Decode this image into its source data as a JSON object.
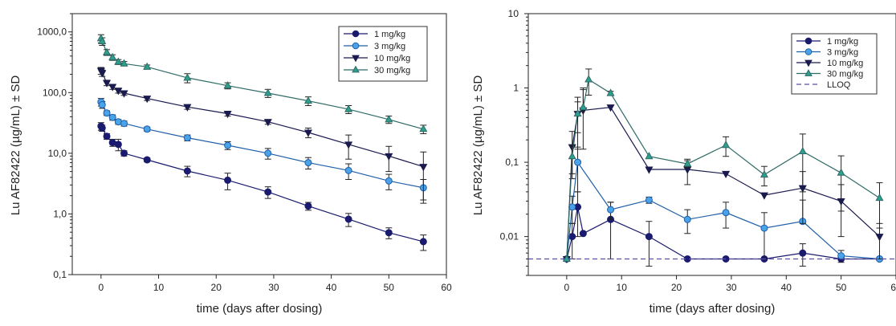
{
  "chart_data": [
    {
      "type": "scatter",
      "xlabel": "time (days after dosing)",
      "ylabel": "Lu AF82422 (µg/mL) ± SD",
      "yscale": "log",
      "xlim": [
        -5,
        60
      ],
      "ylim": [
        0.1,
        2000
      ],
      "x_ticks": [
        0,
        10,
        20,
        30,
        40,
        50,
        60
      ],
      "y_ticks": [
        0.1,
        1,
        10,
        100,
        1000
      ],
      "y_tick_labels": [
        "0,1",
        "1,0",
        "10,0",
        "100,0",
        "1000,0"
      ],
      "legend_position": "top-right",
      "series": [
        {
          "name": "1 mg/kg",
          "marker": "circle",
          "color": "#1a1a6e",
          "fill": "#1a1a6e",
          "x": [
            0,
            0.2,
            1,
            2,
            3,
            4,
            8,
            15,
            22,
            29,
            36,
            43,
            50,
            56
          ],
          "y": [
            28,
            26,
            19,
            15,
            14,
            10,
            7.8,
            5.1,
            3.6,
            2.3,
            1.35,
            0.82,
            0.49,
            0.35
          ],
          "err": [
            4,
            3,
            2,
            2,
            3,
            1,
            0.6,
            1.0,
            1.1,
            0.5,
            0.2,
            0.2,
            0.1,
            0.1
          ]
        },
        {
          "name": "3 mg/kg",
          "marker": "circle",
          "color": "#1f5fa8",
          "fill": "#4aa3e8",
          "x": [
            0,
            0.2,
            1,
            2,
            3,
            4,
            8,
            15,
            22,
            29,
            36,
            43,
            50,
            56
          ],
          "y": [
            70,
            63,
            46,
            39,
            33,
            31,
            25,
            18,
            13.5,
            10,
            7,
            5.2,
            3.5,
            2.7
          ],
          "err": [
            10,
            8,
            4,
            4,
            3,
            3,
            2,
            2,
            2,
            2,
            1.5,
            1.5,
            1,
            1
          ]
        },
        {
          "name": "10 mg/kg",
          "marker": "triangle-down",
          "color": "#1a1a4e",
          "fill": "#1a1a4e",
          "x": [
            0,
            0.2,
            1,
            2,
            3,
            4,
            8,
            15,
            22,
            29,
            36,
            43,
            50,
            56
          ],
          "y": [
            230,
            210,
            145,
            125,
            108,
            98,
            80,
            58,
            45,
            33,
            22,
            14,
            9,
            6
          ],
          "err": [
            30,
            25,
            15,
            12,
            10,
            8,
            6,
            5,
            4,
            3,
            4,
            6,
            4,
            4.5
          ]
        },
        {
          "name": "30 mg/kg",
          "marker": "triangle-up",
          "color": "#2f6b66",
          "fill": "#2e9e8e",
          "x": [
            0,
            0.2,
            1,
            2,
            3,
            4,
            8,
            15,
            22,
            29,
            36,
            43,
            50,
            56
          ],
          "y": [
            780,
            700,
            460,
            380,
            320,
            300,
            265,
            175,
            130,
            98,
            73,
            53,
            36,
            25
          ],
          "err": [
            120,
            100,
            50,
            40,
            30,
            25,
            20,
            30,
            15,
            15,
            12,
            8,
            5,
            4
          ]
        }
      ]
    },
    {
      "type": "scatter",
      "xlabel": "time (days after dosing)",
      "ylabel": "Lu AF82422 (µg/mL) ± SD",
      "yscale": "log",
      "xlim": [
        -7,
        60
      ],
      "ylim": [
        0.003,
        10
      ],
      "x_ticks": [
        0,
        10,
        20,
        30,
        40,
        50,
        60
      ],
      "x_tick_labels": [
        "0",
        "10",
        "20",
        "30",
        "40",
        "50",
        "60"
      ],
      "y_ticks": [
        0.01,
        0.1,
        1,
        10
      ],
      "y_tick_labels": [
        "0,01",
        "0,1",
        "1",
        "10"
      ],
      "legend_position": "top-right",
      "series": [
        {
          "name": "1 mg/kg",
          "marker": "circle",
          "color": "#1a1a6e",
          "fill": "#1a1a6e",
          "x": [
            0,
            1,
            2,
            3,
            8,
            15,
            22,
            29,
            36,
            43,
            50,
            57
          ],
          "y": [
            0.005,
            0.01,
            0.025,
            0.011,
            0.017,
            0.01,
            0.005,
            0.005,
            0.005,
            0.006,
            0.005,
            0.005
          ],
          "err": [
            0,
            0.005,
            0.015,
            0,
            0.012,
            0.006,
            0,
            0,
            0,
            0.002,
            0,
            0
          ]
        },
        {
          "name": "3 mg/kg",
          "marker": "circle",
          "color": "#1f5fa8",
          "fill": "#4aa3e8",
          "x": [
            0,
            1,
            2,
            8,
            15,
            22,
            29,
            36,
            43,
            50,
            57
          ],
          "y": [
            0.005,
            0.025,
            0.1,
            0.023,
            0.031,
            0.017,
            0.021,
            0.013,
            0.016,
            0.0055,
            0.005
          ],
          "err": [
            0,
            0.01,
            0.06,
            0.006,
            0.003,
            0.006,
            0.008,
            0.008,
            0.015,
            0.001,
            0
          ]
        },
        {
          "name": "10 mg/kg",
          "marker": "triangle-down",
          "color": "#1a1a4e",
          "fill": "#1a1a4e",
          "x": [
            0,
            1,
            2,
            3,
            8,
            15,
            22,
            29,
            36,
            43,
            50,
            57
          ],
          "y": [
            0.005,
            0.16,
            0.45,
            0.5,
            0.55,
            0.08,
            0.08,
            0.07,
            0.036,
            0.045,
            0.03,
            0.01
          ],
          "err": [
            0,
            0.1,
            0.3,
            0.5,
            0,
            0,
            0.03,
            0,
            0,
            0.03,
            0.02,
            0.005
          ]
        },
        {
          "name": "30 mg/kg",
          "marker": "triangle-up",
          "color": "#2f6b66",
          "fill": "#2e9e8e",
          "x": [
            0,
            1,
            2,
            3,
            4,
            8,
            15,
            22,
            29,
            36,
            43,
            50,
            57
          ],
          "y": [
            0.005,
            0.12,
            0.45,
            0.55,
            1.3,
            0.85,
            0.12,
            0.095,
            0.17,
            0.068,
            0.14,
            0.072,
            0.033
          ],
          "err": [
            0,
            0.05,
            0.2,
            0.4,
            0.5,
            0.05,
            0,
            0.01,
            0.05,
            0.02,
            0.1,
            0.05,
            0.02
          ]
        },
        {
          "name": "LLOQ",
          "type": "hline",
          "y": 0.005,
          "color": "#5a4fa0",
          "dash": "6,4"
        }
      ]
    }
  ]
}
